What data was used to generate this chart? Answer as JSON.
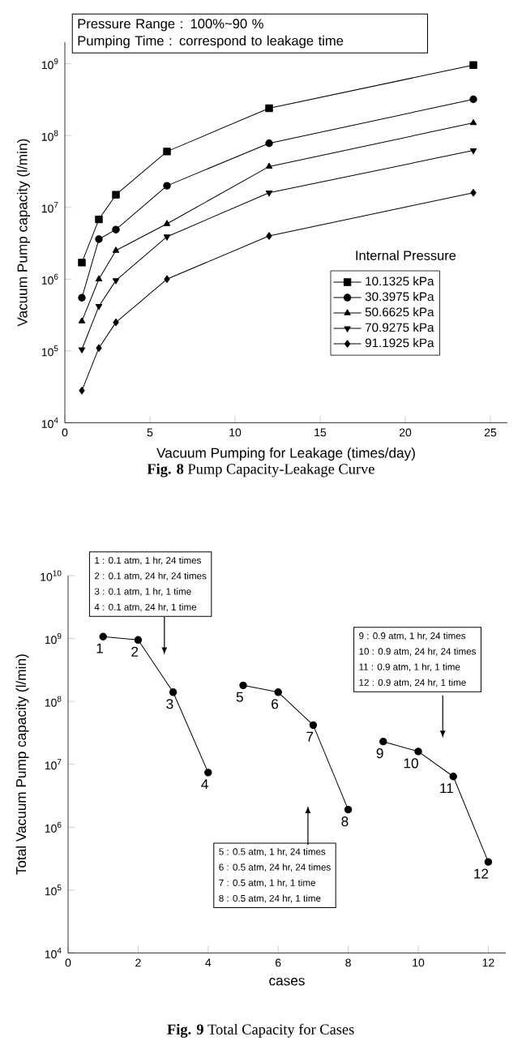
{
  "chart_data": [
    {
      "type": "line",
      "log": "y",
      "line_style": "solid",
      "legend": "bottom right",
      "xlabel": "Vacuum Pumping for Leakage (times/day)",
      "ylabel": "Vacuum Pump capacity (l/min)",
      "legend_title": "Internal Pressure",
      "x": [
        1,
        2,
        3,
        6,
        12,
        24
      ],
      "xlim": [
        0,
        26
      ],
      "xticks": [
        0,
        5,
        10,
        15,
        20,
        25
      ],
      "ylim": [
        10000,
        2000000000
      ],
      "yticks": [
        {
          "value": 10000,
          "label": "10$^{4}$"
        },
        {
          "value": 100000,
          "label": "10$^{5}$"
        },
        {
          "value": 1000000,
          "label": "10$^{6}$"
        },
        {
          "value": 10000000,
          "label": "10$^{7}$"
        },
        {
          "value": 100000000,
          "label": "10$^{8}$"
        },
        {
          "value": 1000000000,
          "label": "10$^{9}$"
        }
      ],
      "series": [
        {
          "name": "10.1325 kPa",
          "color": "#000000",
          "marker": "square",
          "values": [
            1700000,
            6800000,
            15000000,
            60000000,
            240000000,
            960000000
          ]
        },
        {
          "name": "30.3975 kPa",
          "color": "#000000",
          "marker": "circle",
          "values": [
            550000,
            3600000,
            4900000,
            20000000,
            78000000,
            320000000
          ]
        },
        {
          "name": "50.6625 kPa",
          "color": "#000000",
          "marker": "triangle",
          "values": [
            260000,
            1000000,
            2500000,
            5900000,
            37000000,
            150000000
          ]
        },
        {
          "name": "70.9275 kPa",
          "color": "#000000",
          "marker": "triangle-down",
          "values": [
            105000,
            420000,
            960000,
            3900000,
            16000000,
            62000000
          ]
        },
        {
          "name": "91.1925 kPa",
          "color": "#000000",
          "marker": "diamond",
          "values": [
            28000,
            110000,
            250000,
            1000000,
            4000000,
            16000000
          ]
        }
      ],
      "annotations": [
        "Pressure Range : 100%~90 %",
        "Pumping Time : correspond to leakage time",
        "**Fig. 8** Pump Capacity-Leakage Curve"
      ]
    },
    {
      "type": "line",
      "log": "y",
      "line_style": "solid",
      "marker": "circle",
      "xlabel": "cases",
      "ylabel": "Total Vacuum Pump capacity (l/min)",
      "xlim": [
        0,
        12.5
      ],
      "xticks": [
        0,
        2,
        4,
        6,
        8,
        10,
        12
      ],
      "ylim": [
        10000,
        10000000000
      ],
      "yticks": [
        {
          "value": 10000,
          "label": "10$^{4}$"
        },
        {
          "value": 100000,
          "label": "10$^{5}$"
        },
        {
          "value": 1000000,
          "label": "10$^{6}$"
        },
        {
          "value": 10000000,
          "label": "10$^{7}$"
        },
        {
          "value": 100000000,
          "label": "10$^{8}$"
        },
        {
          "value": 1000000000,
          "label": "10$^{9}$"
        },
        {
          "value": 10000000000,
          "label": "10$^{10}$"
        }
      ],
      "series": [
        {
          "color": "#000000",
          "x": [
            1,
            2,
            3,
            4
          ],
          "values": [
            1070000000,
            950000000,
            140000000,
            7400000
          ]
        },
        {
          "color": "#000000",
          "x": [
            5,
            6,
            7,
            8
          ],
          "values": [
            180000000,
            140000000,
            42000000,
            1900000
          ]
        },
        {
          "color": "#000000",
          "x": [
            9,
            10,
            11,
            12
          ],
          "values": [
            23000000,
            16000000,
            6400000,
            280000
          ]
        }
      ],
      "annotations": [
        {
          "text": "1",
          "x": 1,
          "y": 1070000000
        },
        {
          "text": "2",
          "x": 2,
          "y": 950000000
        },
        {
          "text": "3",
          "x": 3,
          "y": 140000000
        },
        {
          "text": "4",
          "x": 4,
          "y": 7400000
        },
        {
          "text": "5",
          "x": 5,
          "y": 180000000
        },
        {
          "text": "6",
          "x": 6,
          "y": 140000000
        },
        {
          "text": "7",
          "x": 7,
          "y": 42000000
        },
        {
          "text": "8",
          "x": 8,
          "y": 1900000
        },
        {
          "text": "9",
          "x": 9,
          "y": 23000000
        },
        {
          "text": "10",
          "x": 10,
          "y": 16000000
        },
        {
          "text": "11",
          "x": 11,
          "y": 6400000
        },
        {
          "text": "12",
          "x": 12,
          "y": 280000
        },
        "1 : 0.1 atm, 1 hr, 24 times",
        "2 : 0.1 atm, 24 hr, 24 times",
        "3 : 0.1 atm, 1 hr, 1 time",
        "4 : 0.1 atm, 24 hr, 1 time",
        "5 : 0.5 atm, 1 hr, 24 times",
        "6 : 0.5 atm, 24 hr, 24 times",
        "7 : 0.5 atm, 1 hr, 1 time",
        "8 : 0.5 atm, 24 hr, 1 time",
        "9 : 0.9 atm, 1 hr, 24 times",
        "10 : 0.9 atm, 24 hr, 24 times",
        "11 : 0.9 atm, 1 hr, 1 time",
        "12 : 0.9 atm, 24 hr, 1 time",
        "**Fig. 9** Total Capacity for Cases"
      ]
    }
  ]
}
